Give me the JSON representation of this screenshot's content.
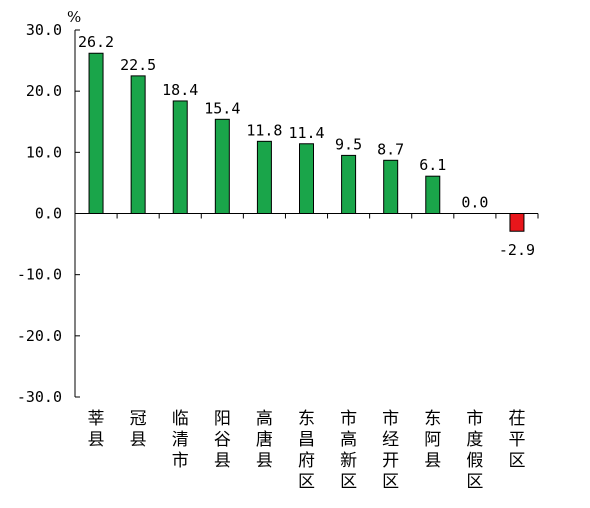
{
  "chart_data": {
    "type": "bar",
    "unit": "%",
    "categories": [
      "莘县",
      "冠县",
      "临清市",
      "阳谷县",
      "高唐县",
      "东昌府区",
      "市高新区",
      "市经开区",
      "东阿县",
      "市度假区",
      "茌平区"
    ],
    "values": [
      26.2,
      22.5,
      18.4,
      15.4,
      11.8,
      11.4,
      9.5,
      8.7,
      6.1,
      0.0,
      -2.9
    ],
    "data_labels": [
      "26.2",
      "22.5",
      "18.4",
      "15.4",
      "11.8",
      "11.4",
      "9.5",
      "8.7",
      "6.1",
      "0.0",
      "-2.9"
    ],
    "y_ticks": [
      30,
      20,
      10,
      0,
      -10,
      -20,
      -30
    ],
    "y_tick_labels": [
      "30.0",
      "20.0",
      "10.0",
      "0.0",
      "-10.0",
      "-20.0",
      "-30.0"
    ],
    "ylim": [
      -30,
      30
    ],
    "grid": false,
    "legend": "none",
    "colors": {
      "positive": "#1aa54a",
      "negative": "#e8161b",
      "stroke": "#000000"
    }
  }
}
